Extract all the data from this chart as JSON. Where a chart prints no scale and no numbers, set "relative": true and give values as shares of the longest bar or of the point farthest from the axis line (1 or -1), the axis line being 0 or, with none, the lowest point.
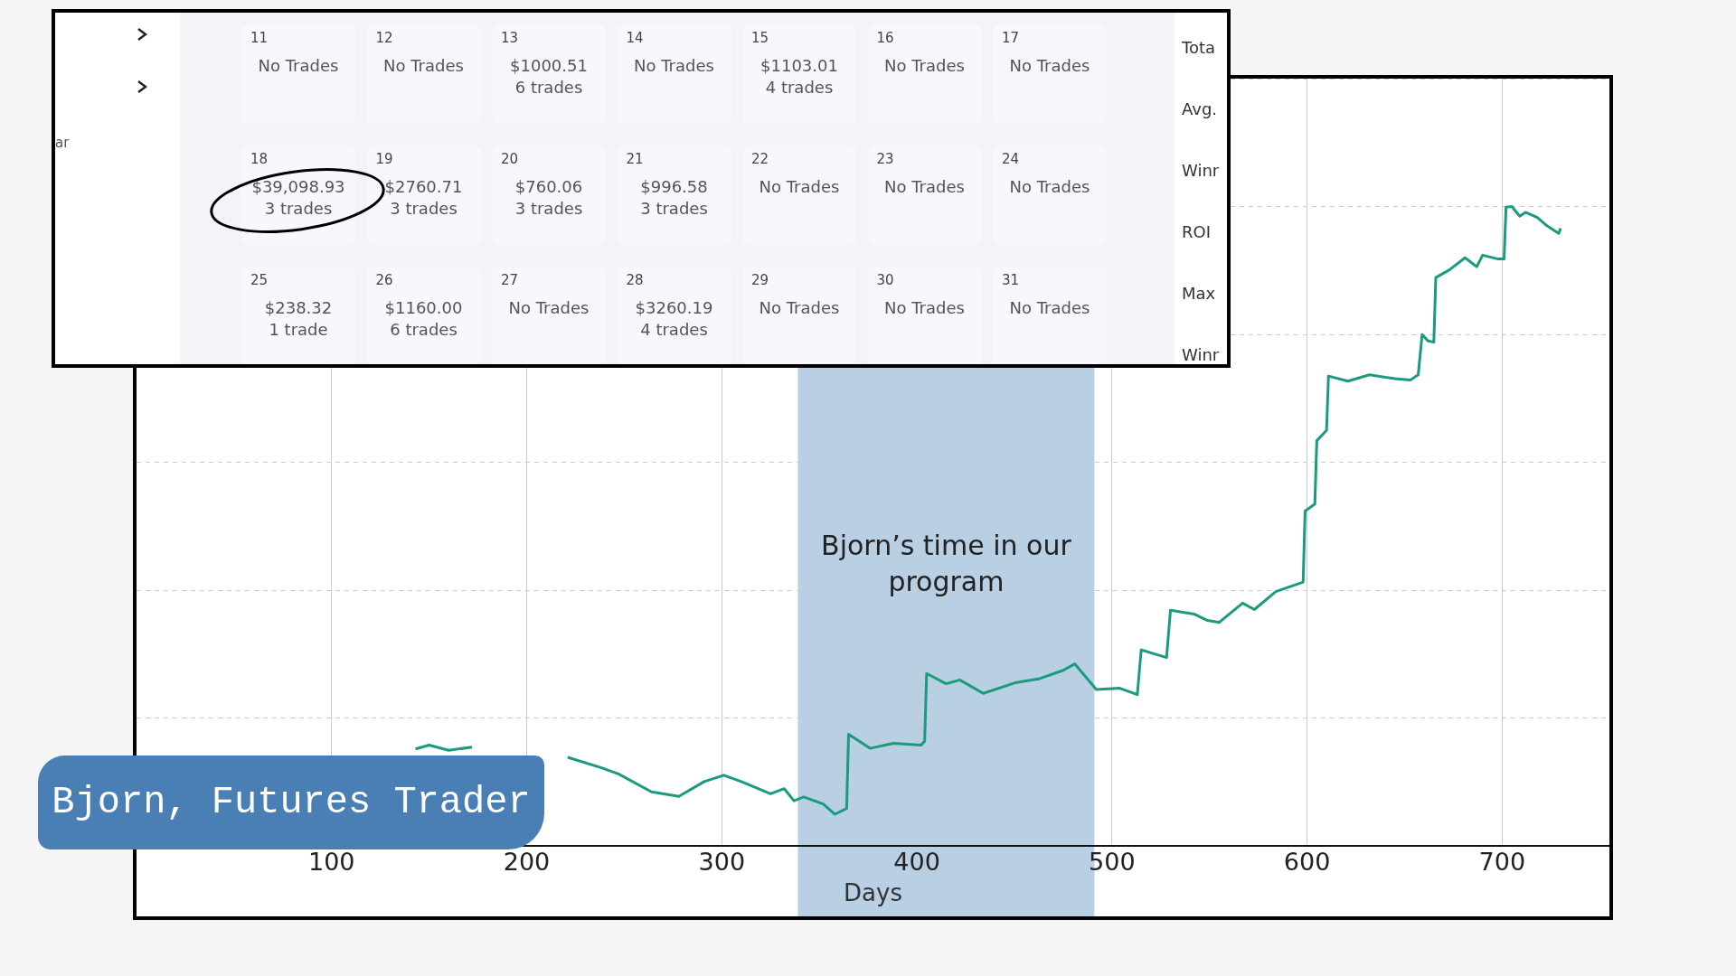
{
  "chart_data": {
    "type": "line",
    "title": "Bjorn, Futures Trader",
    "xlabel": "Days",
    "relative": true,
    "xlim": [
      0,
      755
    ],
    "xticks": [
      100,
      200,
      300,
      400,
      500,
      600,
      700
    ],
    "grid": true,
    "legend": false,
    "marker": "none",
    "line_style": "solid",
    "bands": [
      {
        "axis": "x",
        "from": 339,
        "to": 491,
        "label": "Bjorn’s time in our program",
        "color": "#b9cfe3"
      }
    ],
    "series": [
      {
        "color": "#1b9b7d",
        "x": [
          143,
          150,
          160,
          172,
          195,
          221,
          238,
          247,
          264,
          278,
          291,
          301,
          310,
          325,
          332,
          337,
          342,
          352,
          358,
          364,
          365,
          376,
          388,
          402,
          404,
          405,
          415,
          422,
          434,
          451,
          463,
          475,
          481,
          492,
          504,
          513,
          515,
          528,
          530,
          542,
          549,
          555,
          567,
          573,
          584,
          598,
          599,
          604,
          605,
          610,
          611,
          621,
          632,
          645,
          653,
          657,
          659,
          662,
          665,
          666,
          673,
          681,
          687,
          690,
          698,
          701,
          702,
          705,
          709,
          712,
          718,
          723,
          729,
          730
        ],
        "values": [
          0.152,
          0.158,
          0.15,
          0.155,
          null,
          0.139,
          0.123,
          0.113,
          0.085,
          0.078,
          0.101,
          0.111,
          0.101,
          0.082,
          0.09,
          0.071,
          0.077,
          0.066,
          0.05,
          0.059,
          0.175,
          0.153,
          0.161,
          0.158,
          0.164,
          0.27,
          0.254,
          0.26,
          0.239,
          0.256,
          0.262,
          0.275,
          0.285,
          0.245,
          0.247,
          0.237,
          0.307,
          0.295,
          0.369,
          0.363,
          0.353,
          0.35,
          0.38,
          0.37,
          0.398,
          0.413,
          0.524,
          0.535,
          0.634,
          0.65,
          0.735,
          0.727,
          0.737,
          0.731,
          0.729,
          0.737,
          0.8,
          0.79,
          0.788,
          0.889,
          0.901,
          0.92,
          0.906,
          0.924,
          0.918,
          0.918,
          0.999,
          1,
          0.985,
          0.991,
          0.983,
          0.97,
          0.958,
          0.966
        ]
      }
    ],
    "annotations": [
      "ar",
      "11\nNo Trades",
      "12\nNo Trades",
      "13\n$1000.51\n6 trades",
      "14\nNo Trades",
      "15\n$1103.01\n4 trades",
      "16\nNo Trades",
      "17\nNo Trades",
      "18\n$39,098.93\n3 trades",
      "19\n$2760.71\n3 trades",
      "20\n$760.06\n3 trades",
      "21\n$996.58\n3 trades",
      "22\nNo Trades",
      "23\nNo Trades",
      "24\nNo Trades",
      "25\n$238.32\n1 trade",
      "26\n$1160.00\n6 trades",
      "27\nNo Trades",
      "28\n$3260.19\n4 trades",
      "29\nNo Trades",
      "30\nNo Trades",
      "31\nNo Trades",
      "Tota",
      "Avg.",
      "Winr",
      "ROI",
      "Max",
      "Winr"
    ]
  }
}
